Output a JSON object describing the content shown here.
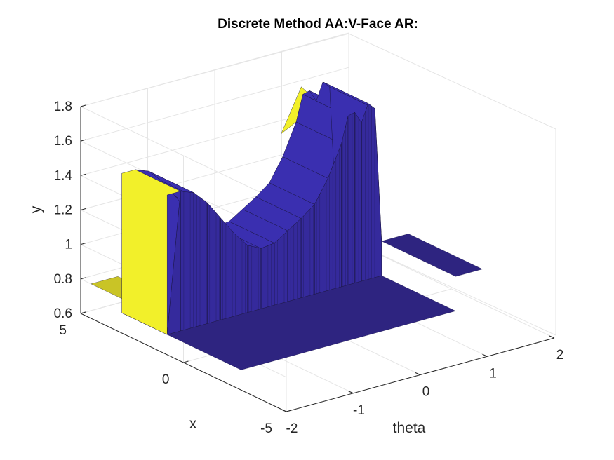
{
  "chart_data": {
    "type": "surface3d",
    "title": "Discrete Method AA:V-Face AR:",
    "xlabel": "x",
    "ylabel": "y",
    "zlabel": "theta",
    "axis_ranges": {
      "x": [
        -5,
        5
      ],
      "y": [
        0.6,
        1.8
      ],
      "theta": [
        -2,
        2
      ]
    },
    "x_ticks": [
      "-5",
      "0",
      "5"
    ],
    "y_ticks": [
      "0.6",
      "0.8",
      "1",
      "1.2",
      "1.4",
      "1.6",
      "1.8"
    ],
    "theta_ticks": [
      "-2",
      "-1",
      "0",
      "1",
      "2"
    ],
    "grid": true,
    "colors": {
      "surface_top": "#3a2fb0",
      "surface_front": "#352a9c",
      "surface_floor": "#2e2480",
      "left_face": "#f2f02a",
      "left_floor": "#c9c426",
      "mesh_line": "#1a1540"
    },
    "series": [
      {
        "values": [
          {
            "theta": -2.0,
            "y": 0.6
          },
          {
            "theta": -1.6,
            "y": 0.6
          },
          {
            "theta": -1.4,
            "y": 1.41
          },
          {
            "theta": -1.2,
            "y": 1.38
          },
          {
            "theta": -1.0,
            "y": 1.3
          },
          {
            "theta": -0.8,
            "y": 1.19
          },
          {
            "theta": -0.6,
            "y": 1.08
          },
          {
            "theta": -0.4,
            "y": 0.99
          },
          {
            "theta": -0.2,
            "y": 0.95
          },
          {
            "theta": 0.0,
            "y": 0.96
          },
          {
            "theta": 0.2,
            "y": 1.01
          },
          {
            "theta": 0.4,
            "y": 1.06
          },
          {
            "theta": 0.6,
            "y": 1.12
          },
          {
            "theta": 0.8,
            "y": 1.25
          },
          {
            "theta": 1.0,
            "y": 1.43
          },
          {
            "theta": 1.1,
            "y": 1.58
          },
          {
            "theta": 1.2,
            "y": 1.59
          },
          {
            "theta": 1.3,
            "y": 1.52
          },
          {
            "theta": 1.4,
            "y": 1.62
          },
          {
            "theta": 1.5,
            "y": 1.58
          },
          {
            "theta": 1.6,
            "y": 0.8
          },
          {
            "theta": 2.0,
            "y": 0.8
          }
        ]
      }
    ]
  }
}
